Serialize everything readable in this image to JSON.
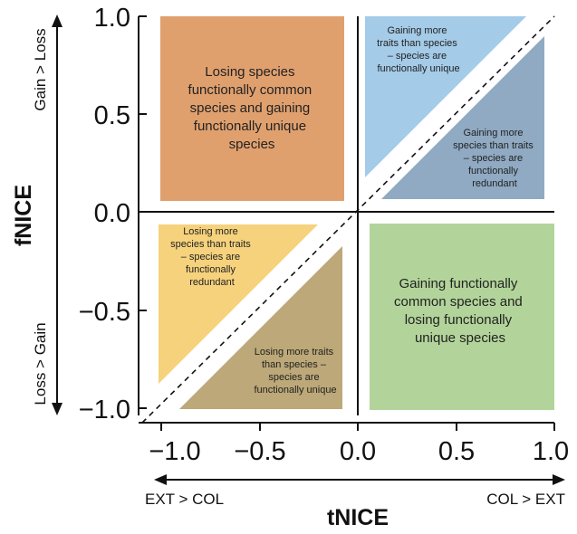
{
  "x_axis": {
    "title": "tNICE",
    "ticks": [
      "−1.0",
      "−0.5",
      "0.0",
      "0.5",
      "1.0"
    ],
    "left_label": "EXT > COL",
    "right_label": "COL > EXT"
  },
  "y_axis": {
    "title": "fNICE",
    "ticks": [
      "1.0",
      "0.5",
      "0.0",
      "−0.5",
      "−1.0"
    ],
    "top_label": "Gain > Loss",
    "bottom_label": "Loss > Gain"
  },
  "quadrants": {
    "top_left": {
      "color": "#E0A06E",
      "lines": [
        "Losing species",
        "functionally common",
        "species and gaining",
        "functionally unique",
        "species"
      ]
    },
    "top_right_upper": {
      "color": "#A4CBE8",
      "lines": [
        "Gaining more",
        "traits than species",
        "– species are",
        "functionally unique"
      ]
    },
    "top_right_lower": {
      "color": "#8FAAC2",
      "lines": [
        "Gaining more",
        "species than traits",
        "– species are",
        "functionally",
        "redundant"
      ]
    },
    "bottom_left_upper": {
      "color": "#F6D27C",
      "lines": [
        "Losing more",
        "species than traits",
        "– species are",
        "functionally",
        "redundant"
      ]
    },
    "bottom_left_lower": {
      "color": "#BCA878",
      "lines": [
        "Losing more traits",
        "than species –",
        "species are",
        "functionally unique"
      ]
    },
    "bottom_right": {
      "color": "#B2D49A",
      "lines": [
        "Gaining functionally",
        "common species and",
        "losing functionally",
        "unique species"
      ]
    }
  }
}
